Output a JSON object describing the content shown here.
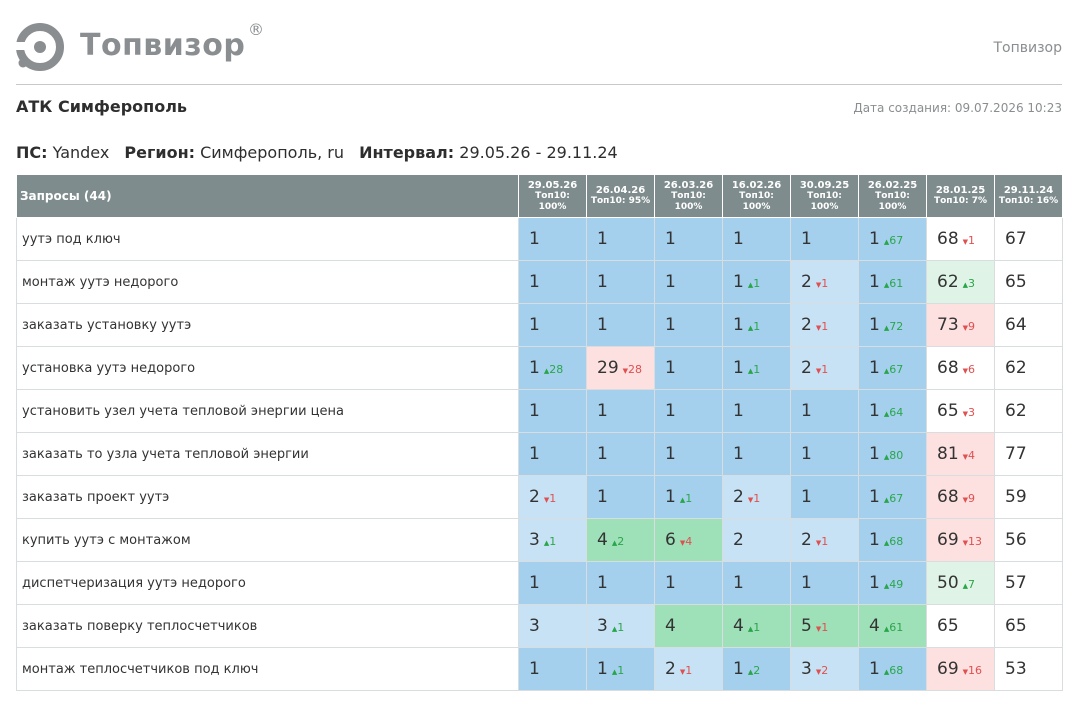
{
  "brand": {
    "logo_text": "Топвизор",
    "reg": "®",
    "right_text": "Топвизор"
  },
  "project": {
    "title": "АТК Симферополь",
    "created": "Дата создания: 09.07.2026 10:23"
  },
  "params": {
    "ps_label": "ПС:",
    "ps_value": "Yandex",
    "region_label": "Регион:",
    "region_value": "Симферополь, ru",
    "interval_label": "Интервал:",
    "interval_value": "29.05.26 - 29.11.24"
  },
  "colors": {
    "header": "#7f8c8d",
    "blue_dark": "#a4d0ee",
    "blue_light": "#c7e2f4",
    "green": "#9ee0b8",
    "green_light": "#dff4e7",
    "red_light": "#fde0e0",
    "up": "#2aa64a",
    "down": "#e05050"
  },
  "table": {
    "query_header": "Запросы (44)",
    "columns": [
      {
        "date": "29.05.26",
        "top": "Топ10:",
        "pct": "100%"
      },
      {
        "date": "26.04.26",
        "top": "Топ10: 95%",
        "pct": ""
      },
      {
        "date": "26.03.26",
        "top": "Топ10:",
        "pct": "100%"
      },
      {
        "date": "16.02.26",
        "top": "Топ10:",
        "pct": "100%"
      },
      {
        "date": "30.09.25",
        "top": "Топ10:",
        "pct": "100%"
      },
      {
        "date": "26.02.25",
        "top": "Топ10:",
        "pct": "100%"
      },
      {
        "date": "28.01.25",
        "top": "Топ10: 7%",
        "pct": ""
      },
      {
        "date": "29.11.24",
        "top": "Топ10: 16%",
        "pct": ""
      }
    ],
    "rows": [
      {
        "query": "уутэ под ключ",
        "cells": [
          {
            "v": "1",
            "d": "",
            "dir": "",
            "bg": "#a4d0ee"
          },
          {
            "v": "1",
            "d": "",
            "dir": "",
            "bg": "#a4d0ee"
          },
          {
            "v": "1",
            "d": "",
            "dir": "",
            "bg": "#a4d0ee"
          },
          {
            "v": "1",
            "d": "",
            "dir": "",
            "bg": "#a4d0ee"
          },
          {
            "v": "1",
            "d": "",
            "dir": "",
            "bg": "#a4d0ee"
          },
          {
            "v": "1",
            "d": "67",
            "dir": "up",
            "bg": "#a4d0ee"
          },
          {
            "v": "68",
            "d": "1",
            "dir": "down",
            "bg": "#ffffff"
          },
          {
            "v": "67",
            "d": "",
            "dir": "",
            "bg": "#ffffff"
          }
        ]
      },
      {
        "query": "монтаж уутэ недорого",
        "cells": [
          {
            "v": "1",
            "d": "",
            "dir": "",
            "bg": "#a4d0ee"
          },
          {
            "v": "1",
            "d": "",
            "dir": "",
            "bg": "#a4d0ee"
          },
          {
            "v": "1",
            "d": "",
            "dir": "",
            "bg": "#a4d0ee"
          },
          {
            "v": "1",
            "d": "1",
            "dir": "up",
            "bg": "#a4d0ee"
          },
          {
            "v": "2",
            "d": "1",
            "dir": "down",
            "bg": "#c7e2f4"
          },
          {
            "v": "1",
            "d": "61",
            "dir": "up",
            "bg": "#a4d0ee"
          },
          {
            "v": "62",
            "d": "3",
            "dir": "up",
            "bg": "#dff4e7"
          },
          {
            "v": "65",
            "d": "",
            "dir": "",
            "bg": "#ffffff"
          }
        ]
      },
      {
        "query": "заказать установку уутэ",
        "cells": [
          {
            "v": "1",
            "d": "",
            "dir": "",
            "bg": "#a4d0ee"
          },
          {
            "v": "1",
            "d": "",
            "dir": "",
            "bg": "#a4d0ee"
          },
          {
            "v": "1",
            "d": "",
            "dir": "",
            "bg": "#a4d0ee"
          },
          {
            "v": "1",
            "d": "1",
            "dir": "up",
            "bg": "#a4d0ee"
          },
          {
            "v": "2",
            "d": "1",
            "dir": "down",
            "bg": "#c7e2f4"
          },
          {
            "v": "1",
            "d": "72",
            "dir": "up",
            "bg": "#a4d0ee"
          },
          {
            "v": "73",
            "d": "9",
            "dir": "down",
            "bg": "#fde0e0"
          },
          {
            "v": "64",
            "d": "",
            "dir": "",
            "bg": "#ffffff"
          }
        ]
      },
      {
        "query": "установка уутэ недорого",
        "cells": [
          {
            "v": "1",
            "d": "28",
            "dir": "up",
            "bg": "#a4d0ee"
          },
          {
            "v": "29",
            "d": "28",
            "dir": "down",
            "bg": "#fde0e0"
          },
          {
            "v": "1",
            "d": "",
            "dir": "",
            "bg": "#a4d0ee"
          },
          {
            "v": "1",
            "d": "1",
            "dir": "up",
            "bg": "#a4d0ee"
          },
          {
            "v": "2",
            "d": "1",
            "dir": "down",
            "bg": "#c7e2f4"
          },
          {
            "v": "1",
            "d": "67",
            "dir": "up",
            "bg": "#a4d0ee"
          },
          {
            "v": "68",
            "d": "6",
            "dir": "down",
            "bg": "#ffffff"
          },
          {
            "v": "62",
            "d": "",
            "dir": "",
            "bg": "#ffffff"
          }
        ]
      },
      {
        "query": "установить узел учета тепловой энергии цена",
        "cells": [
          {
            "v": "1",
            "d": "",
            "dir": "",
            "bg": "#a4d0ee"
          },
          {
            "v": "1",
            "d": "",
            "dir": "",
            "bg": "#a4d0ee"
          },
          {
            "v": "1",
            "d": "",
            "dir": "",
            "bg": "#a4d0ee"
          },
          {
            "v": "1",
            "d": "",
            "dir": "",
            "bg": "#a4d0ee"
          },
          {
            "v": "1",
            "d": "",
            "dir": "",
            "bg": "#a4d0ee"
          },
          {
            "v": "1",
            "d": "64",
            "dir": "up",
            "bg": "#a4d0ee"
          },
          {
            "v": "65",
            "d": "3",
            "dir": "down",
            "bg": "#ffffff"
          },
          {
            "v": "62",
            "d": "",
            "dir": "",
            "bg": "#ffffff"
          }
        ]
      },
      {
        "query": "заказать то узла учета тепловой энергии",
        "cells": [
          {
            "v": "1",
            "d": "",
            "dir": "",
            "bg": "#a4d0ee"
          },
          {
            "v": "1",
            "d": "",
            "dir": "",
            "bg": "#a4d0ee"
          },
          {
            "v": "1",
            "d": "",
            "dir": "",
            "bg": "#a4d0ee"
          },
          {
            "v": "1",
            "d": "",
            "dir": "",
            "bg": "#a4d0ee"
          },
          {
            "v": "1",
            "d": "",
            "dir": "",
            "bg": "#a4d0ee"
          },
          {
            "v": "1",
            "d": "80",
            "dir": "up",
            "bg": "#a4d0ee"
          },
          {
            "v": "81",
            "d": "4",
            "dir": "down",
            "bg": "#fde0e0"
          },
          {
            "v": "77",
            "d": "",
            "dir": "",
            "bg": "#ffffff"
          }
        ]
      },
      {
        "query": "заказать проект уутэ",
        "cells": [
          {
            "v": "2",
            "d": "1",
            "dir": "down",
            "bg": "#c7e2f4"
          },
          {
            "v": "1",
            "d": "",
            "dir": "",
            "bg": "#a4d0ee"
          },
          {
            "v": "1",
            "d": "1",
            "dir": "up",
            "bg": "#a4d0ee"
          },
          {
            "v": "2",
            "d": "1",
            "dir": "down",
            "bg": "#c7e2f4"
          },
          {
            "v": "1",
            "d": "",
            "dir": "",
            "bg": "#a4d0ee"
          },
          {
            "v": "1",
            "d": "67",
            "dir": "up",
            "bg": "#a4d0ee"
          },
          {
            "v": "68",
            "d": "9",
            "dir": "down",
            "bg": "#fde0e0"
          },
          {
            "v": "59",
            "d": "",
            "dir": "",
            "bg": "#ffffff"
          }
        ]
      },
      {
        "query": "купить уутэ с монтажом",
        "cells": [
          {
            "v": "3",
            "d": "1",
            "dir": "up",
            "bg": "#c7e2f4"
          },
          {
            "v": "4",
            "d": "2",
            "dir": "up",
            "bg": "#9ee0b8"
          },
          {
            "v": "6",
            "d": "4",
            "dir": "down",
            "bg": "#9ee0b8"
          },
          {
            "v": "2",
            "d": "",
            "dir": "",
            "bg": "#c7e2f4"
          },
          {
            "v": "2",
            "d": "1",
            "dir": "down",
            "bg": "#c7e2f4"
          },
          {
            "v": "1",
            "d": "68",
            "dir": "up",
            "bg": "#a4d0ee"
          },
          {
            "v": "69",
            "d": "13",
            "dir": "down",
            "bg": "#fde0e0"
          },
          {
            "v": "56",
            "d": "",
            "dir": "",
            "bg": "#ffffff"
          }
        ]
      },
      {
        "query": "диспетчеризация уутэ недорого",
        "cells": [
          {
            "v": "1",
            "d": "",
            "dir": "",
            "bg": "#a4d0ee"
          },
          {
            "v": "1",
            "d": "",
            "dir": "",
            "bg": "#a4d0ee"
          },
          {
            "v": "1",
            "d": "",
            "dir": "",
            "bg": "#a4d0ee"
          },
          {
            "v": "1",
            "d": "",
            "dir": "",
            "bg": "#a4d0ee"
          },
          {
            "v": "1",
            "d": "",
            "dir": "",
            "bg": "#a4d0ee"
          },
          {
            "v": "1",
            "d": "49",
            "dir": "up",
            "bg": "#a4d0ee"
          },
          {
            "v": "50",
            "d": "7",
            "dir": "up",
            "bg": "#dff4e7"
          },
          {
            "v": "57",
            "d": "",
            "dir": "",
            "bg": "#ffffff"
          }
        ]
      },
      {
        "query": "заказать поверку теплосчетчиков",
        "cells": [
          {
            "v": "3",
            "d": "",
            "dir": "",
            "bg": "#c7e2f4"
          },
          {
            "v": "3",
            "d": "1",
            "dir": "up",
            "bg": "#c7e2f4"
          },
          {
            "v": "4",
            "d": "",
            "dir": "",
            "bg": "#9ee0b8"
          },
          {
            "v": "4",
            "d": "1",
            "dir": "up",
            "bg": "#9ee0b8"
          },
          {
            "v": "5",
            "d": "1",
            "dir": "down",
            "bg": "#9ee0b8"
          },
          {
            "v": "4",
            "d": "61",
            "dir": "up",
            "bg": "#9ee0b8"
          },
          {
            "v": "65",
            "d": "",
            "dir": "",
            "bg": "#ffffff"
          },
          {
            "v": "65",
            "d": "",
            "dir": "",
            "bg": "#ffffff"
          }
        ]
      },
      {
        "query": "монтаж теплосчетчиков под ключ",
        "cells": [
          {
            "v": "1",
            "d": "",
            "dir": "",
            "bg": "#a4d0ee"
          },
          {
            "v": "1",
            "d": "1",
            "dir": "up",
            "bg": "#a4d0ee"
          },
          {
            "v": "2",
            "d": "1",
            "dir": "down",
            "bg": "#c7e2f4"
          },
          {
            "v": "1",
            "d": "2",
            "dir": "up",
            "bg": "#a4d0ee"
          },
          {
            "v": "3",
            "d": "2",
            "dir": "down",
            "bg": "#c7e2f4"
          },
          {
            "v": "1",
            "d": "68",
            "dir": "up",
            "bg": "#a4d0ee"
          },
          {
            "v": "69",
            "d": "16",
            "dir": "down",
            "bg": "#fde0e0"
          },
          {
            "v": "53",
            "d": "",
            "dir": "",
            "bg": "#ffffff"
          }
        ]
      }
    ]
  }
}
